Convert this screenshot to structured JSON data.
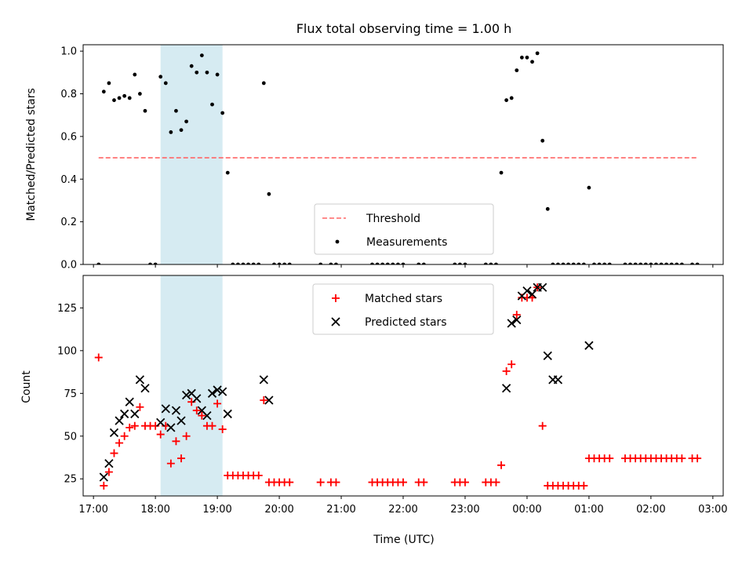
{
  "figure": {
    "title": "Flux total observing time = 1.00 h",
    "xlabel": "Time (UTC)",
    "top_ylabel": "Matched/Predicted stars",
    "bottom_ylabel": "Count"
  },
  "chart_data": [
    {
      "type": "scatter",
      "panel": "top",
      "ylabel": "Matched/Predicted stars",
      "xlim": [
        "16:50",
        "03:10"
      ],
      "ylim": [
        0,
        1.03
      ],
      "xticks": [
        "17:00",
        "18:00",
        "19:00",
        "20:00",
        "21:00",
        "22:00",
        "23:00",
        "00:00",
        "01:00",
        "02:00",
        "03:00"
      ],
      "yticks": [
        "0.0",
        "0.2",
        "0.4",
        "0.6",
        "0.8",
        "1.0"
      ],
      "shaded_region": {
        "start": "18:05",
        "end": "19:05",
        "color": "#add8e6"
      },
      "threshold": {
        "label": "Threshold",
        "value": 0.5,
        "from": "17:05",
        "to": "02:45",
        "color": "#ff6666",
        "style": "dashed"
      },
      "legend": {
        "position": "lower-center",
        "entries": [
          "Threshold",
          "Measurements"
        ]
      },
      "series": [
        {
          "name": "Measurements",
          "marker": "dot",
          "color": "#000000",
          "x": [
            "17:05",
            "17:10",
            "17:15",
            "17:20",
            "17:25",
            "17:30",
            "17:35",
            "17:40",
            "17:45",
            "17:50",
            "17:55",
            "18:00",
            "18:05",
            "18:10",
            "18:15",
            "18:20",
            "18:25",
            "18:30",
            "18:35",
            "18:40",
            "18:45",
            "18:50",
            "18:55",
            "19:00",
            "19:05",
            "19:10",
            "19:15",
            "19:20",
            "19:25",
            "19:30",
            "19:35",
            "19:40",
            "19:45",
            "19:50",
            "19:55",
            "20:00",
            "20:05",
            "20:10",
            "20:40",
            "20:50",
            "20:55",
            "21:30",
            "21:35",
            "21:40",
            "21:45",
            "21:50",
            "21:55",
            "22:00",
            "22:15",
            "22:20",
            "22:50",
            "22:55",
            "23:00",
            "23:20",
            "23:25",
            "23:30",
            "23:35",
            "23:40",
            "23:45",
            "23:50",
            "23:55",
            "00:00",
            "00:05",
            "00:10",
            "00:15",
            "00:20",
            "00:25",
            "00:30",
            "00:35",
            "00:40",
            "00:45",
            "00:50",
            "00:55",
            "01:00",
            "01:05",
            "01:10",
            "01:15",
            "01:20",
            "01:35",
            "01:40",
            "01:45",
            "01:50",
            "01:55",
            "02:00",
            "02:05",
            "02:10",
            "02:15",
            "02:20",
            "02:25",
            "02:30",
            "02:40",
            "02:45"
          ],
          "y": [
            0.0,
            0.81,
            0.85,
            0.77,
            0.78,
            0.79,
            0.78,
            0.89,
            0.8,
            0.72,
            0.0,
            0.0,
            0.88,
            0.85,
            0.62,
            0.72,
            0.63,
            0.67,
            0.93,
            0.9,
            0.98,
            0.9,
            0.75,
            0.89,
            0.71,
            0.43,
            0.0,
            0.0,
            0.0,
            0.0,
            0.0,
            0.0,
            0.85,
            0.33,
            0.0,
            0.0,
            0.0,
            0.0,
            0.0,
            0.0,
            0.0,
            0.0,
            0.0,
            0.0,
            0.0,
            0.0,
            0.0,
            0.0,
            0.0,
            0.0,
            0.0,
            0.0,
            0.0,
            0.0,
            0.0,
            0.0,
            0.43,
            0.77,
            0.78,
            0.91,
            0.97,
            0.97,
            0.95,
            0.99,
            0.58,
            0.26,
            0.0,
            0.0,
            0.0,
            0.0,
            0.0,
            0.0,
            0.0,
            0.36,
            0.0,
            0.0,
            0.0,
            0.0,
            0.0,
            0.0,
            0.0,
            0.0,
            0.0,
            0.0,
            0.0,
            0.0,
            0.0,
            0.0,
            0.0,
            0.0,
            0.0,
            0.0
          ]
        }
      ]
    },
    {
      "type": "scatter",
      "panel": "bottom",
      "ylabel": "Count",
      "xlabel": "Time (UTC)",
      "xlim": [
        "16:50",
        "03:10"
      ],
      "ylim": [
        15,
        144
      ],
      "xticks": [
        "17:00",
        "18:00",
        "19:00",
        "20:00",
        "21:00",
        "22:00",
        "23:00",
        "00:00",
        "01:00",
        "02:00",
        "03:00"
      ],
      "yticks": [
        "25",
        "50",
        "75",
        "100",
        "125"
      ],
      "shaded_region": {
        "start": "18:05",
        "end": "19:05",
        "color": "#add8e6"
      },
      "legend": {
        "position": "top-center",
        "entries": [
          "Matched stars",
          "Predicted stars"
        ]
      },
      "series": [
        {
          "name": "Matched stars",
          "marker": "plus",
          "color": "#ff0000",
          "x": [
            "17:05",
            "17:10",
            "17:15",
            "17:20",
            "17:25",
            "17:30",
            "17:35",
            "17:40",
            "17:45",
            "17:50",
            "17:55",
            "18:00",
            "18:05",
            "18:10",
            "18:15",
            "18:20",
            "18:25",
            "18:30",
            "18:35",
            "18:40",
            "18:45",
            "18:50",
            "18:55",
            "19:00",
            "19:05",
            "19:10",
            "19:15",
            "19:20",
            "19:25",
            "19:30",
            "19:35",
            "19:40",
            "19:45",
            "19:50",
            "19:55",
            "20:00",
            "20:05",
            "20:10",
            "20:40",
            "20:50",
            "20:55",
            "21:30",
            "21:35",
            "21:40",
            "21:45",
            "21:50",
            "21:55",
            "22:00",
            "22:15",
            "22:20",
            "22:50",
            "22:55",
            "23:00",
            "23:20",
            "23:25",
            "23:30",
            "23:35",
            "23:40",
            "23:45",
            "23:50",
            "23:55",
            "00:00",
            "00:05",
            "00:10",
            "00:15",
            "00:20",
            "00:25",
            "00:30",
            "00:35",
            "00:40",
            "00:45",
            "00:50",
            "00:55",
            "01:00",
            "01:05",
            "01:10",
            "01:15",
            "01:20",
            "01:35",
            "01:40",
            "01:45",
            "01:50",
            "01:55",
            "02:00",
            "02:05",
            "02:10",
            "02:15",
            "02:20",
            "02:25",
            "02:30",
            "02:40",
            "02:45"
          ],
          "y": [
            96,
            21,
            29,
            40,
            46,
            50,
            55,
            56,
            67,
            56,
            56,
            56,
            51,
            56,
            34,
            47,
            37,
            50,
            70,
            65,
            62,
            56,
            56,
            69,
            54,
            27,
            27,
            27,
            27,
            27,
            27,
            27,
            71,
            23,
            23,
            23,
            23,
            23,
            23,
            23,
            23,
            23,
            23,
            23,
            23,
            23,
            23,
            23,
            23,
            23,
            23,
            23,
            23,
            23,
            23,
            23,
            33,
            88,
            92,
            121,
            131,
            131,
            131,
            137,
            56,
            21,
            21,
            21,
            21,
            21,
            21,
            21,
            21,
            37,
            37,
            37,
            37,
            37,
            37,
            37,
            37,
            37,
            37,
            37,
            37,
            37,
            37,
            37,
            37,
            37,
            37,
            37
          ]
        },
        {
          "name": "Predicted stars",
          "marker": "x",
          "color": "#000000",
          "x": [
            "17:10",
            "17:15",
            "17:20",
            "17:25",
            "17:30",
            "17:35",
            "17:40",
            "17:45",
            "17:50",
            "18:05",
            "18:10",
            "18:15",
            "18:20",
            "18:25",
            "18:30",
            "18:35",
            "18:40",
            "18:45",
            "18:50",
            "18:55",
            "19:00",
            "19:05",
            "19:10",
            "19:45",
            "19:50",
            "23:40",
            "23:45",
            "23:50",
            "23:55",
            "00:00",
            "00:05",
            "00:10",
            "00:15",
            "00:20",
            "00:25",
            "00:30",
            "01:00"
          ],
          "y": [
            26,
            34,
            52,
            59,
            63,
            70,
            63,
            83,
            78,
            58,
            66,
            55,
            65,
            59,
            74,
            75,
            72,
            65,
            62,
            75,
            77,
            76,
            63,
            83,
            71,
            78,
            116,
            118,
            132,
            135,
            133,
            137,
            137,
            97,
            83,
            83,
            103
          ]
        }
      ]
    }
  ]
}
